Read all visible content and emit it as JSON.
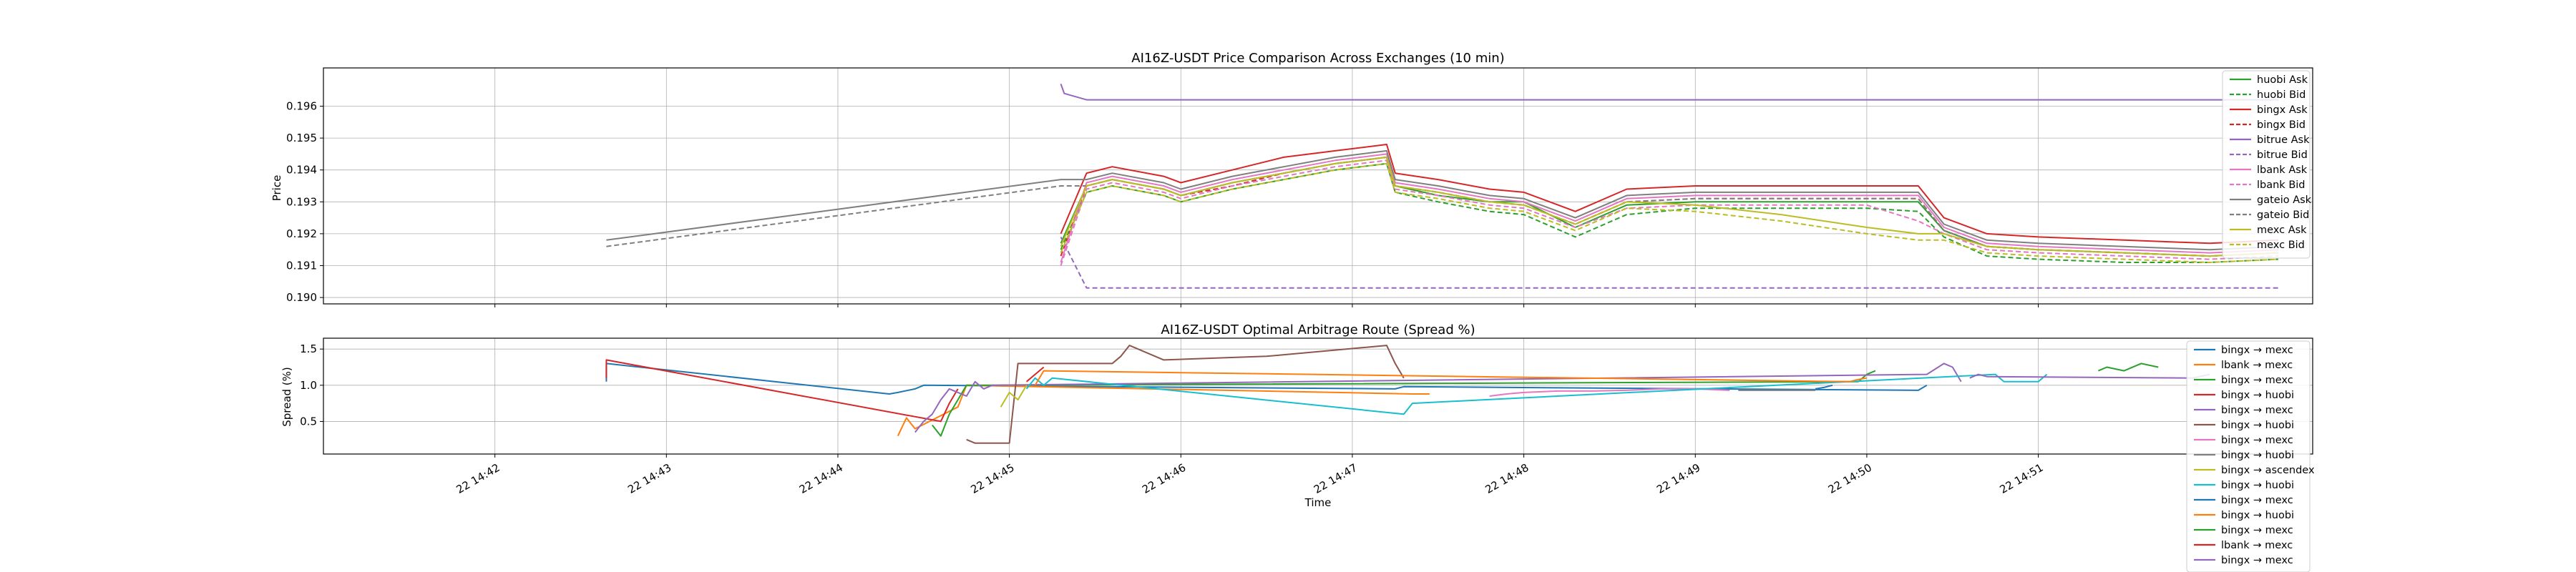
{
  "chart_data": [
    {
      "type": "line",
      "title": "AI16Z-USDT Price Comparison Across Exchanges (10 min)",
      "xlabel": "",
      "ylabel": "Price",
      "ylim": [
        0.1898,
        0.1972
      ],
      "yticks": [
        "0.190",
        "0.191",
        "0.192",
        "0.193",
        "0.194",
        "0.195",
        "0.196"
      ],
      "grid": true,
      "legend_position": "upper right",
      "series": [
        {
          "name": "huobi Ask",
          "color": "#2ca02c",
          "dash": "solid",
          "x": [
            4.3,
            4.45,
            4.6,
            4.9,
            5.0,
            5.3,
            5.6,
            5.9,
            6.2,
            6.25,
            6.5,
            6.8,
            7.0,
            7.3,
            7.6,
            8.0,
            8.5,
            9.0,
            9.3,
            9.45,
            9.7,
            10.0,
            10.5,
            11.0,
            11.4
          ],
          "y": [
            0.1917,
            0.1935,
            0.1937,
            0.1934,
            0.1932,
            0.1936,
            0.1939,
            0.1942,
            0.1944,
            0.1935,
            0.1932,
            0.193,
            0.193,
            0.1922,
            0.1929,
            0.193,
            0.193,
            0.193,
            0.193,
            0.1921,
            0.1916,
            0.1915,
            0.1914,
            0.1913,
            0.1914
          ]
        },
        {
          "name": "huobi Bid",
          "color": "#2ca02c",
          "dash": "dashed",
          "x": [
            4.3,
            4.45,
            4.6,
            4.9,
            5.0,
            5.3,
            5.6,
            5.9,
            6.2,
            6.25,
            6.5,
            6.8,
            7.0,
            7.3,
            7.6,
            8.0,
            8.5,
            9.0,
            9.3,
            9.45,
            9.7,
            10.0,
            10.5,
            11.0,
            11.4
          ],
          "y": [
            0.1915,
            0.1933,
            0.1935,
            0.1932,
            0.193,
            0.1934,
            0.1937,
            0.194,
            0.1942,
            0.1933,
            0.193,
            0.1927,
            0.1926,
            0.1919,
            0.1926,
            0.1928,
            0.1928,
            0.1928,
            0.1927,
            0.1919,
            0.1913,
            0.1912,
            0.1911,
            0.1911,
            0.1912
          ]
        },
        {
          "name": "bingx Ask",
          "color": "#d62728",
          "dash": "solid",
          "x": [
            4.3,
            4.45,
            4.6,
            4.9,
            5.0,
            5.3,
            5.6,
            5.9,
            6.2,
            6.25,
            6.5,
            6.8,
            7.0,
            7.3,
            7.6,
            8.0,
            8.5,
            9.0,
            9.3,
            9.45,
            9.7,
            10.0,
            10.5,
            11.0,
            11.4
          ],
          "y": [
            0.192,
            0.1939,
            0.1941,
            0.1938,
            0.1936,
            0.194,
            0.1944,
            0.1946,
            0.1948,
            0.1939,
            0.1937,
            0.1934,
            0.1933,
            0.1927,
            0.1934,
            0.1935,
            0.1935,
            0.1935,
            0.1935,
            0.1925,
            0.192,
            0.1919,
            0.1918,
            0.1917,
            0.1918
          ]
        },
        {
          "name": "bingx Bid",
          "color": "#d62728",
          "dash": "dashed",
          "x": [
            4.3,
            4.45,
            4.6,
            4.9,
            5.0,
            5.3,
            5.6,
            5.9,
            6.2,
            6.25,
            6.5,
            6.8,
            7.0,
            7.3,
            7.6,
            8.0,
            8.5,
            9.0,
            9.3,
            9.45,
            9.7,
            10.0,
            10.5,
            11.0,
            11.4
          ],
          "y": [
            0.1913,
            0.1935,
            0.1937,
            0.1934,
            0.1932,
            0.1935,
            0.1939,
            0.1942,
            0.1944,
            0.1935,
            0.1933,
            0.193,
            0.1929,
            0.1923,
            0.193,
            0.1931,
            0.1931,
            0.1931,
            0.1931,
            0.1921,
            0.1916,
            0.1915,
            0.1914,
            0.1913,
            0.1914
          ]
        },
        {
          "name": "bitrue Ask",
          "color": "#9467bd",
          "dash": "solid",
          "x": [
            4.3,
            4.32,
            4.45,
            5.0,
            6.0,
            7.0,
            8.0,
            9.0,
            10.0,
            11.0,
            11.4
          ],
          "y": [
            0.1967,
            0.1964,
            0.1962,
            0.1962,
            0.1962,
            0.1962,
            0.1962,
            0.1962,
            0.1962,
            0.1962,
            0.1962
          ]
        },
        {
          "name": "bitrue Bid",
          "color": "#9467bd",
          "dash": "dashed",
          "x": [
            4.3,
            4.45,
            5.0,
            6.0,
            7.0,
            8.0,
            9.0,
            10.0,
            11.0,
            11.4
          ],
          "y": [
            0.1919,
            0.1903,
            0.1903,
            0.1903,
            0.1903,
            0.1903,
            0.1903,
            0.1903,
            0.1903,
            0.1903
          ]
        },
        {
          "name": "lbank Ask",
          "color": "#e377c2",
          "dash": "solid",
          "x": [
            4.3,
            4.45,
            4.6,
            4.9,
            5.0,
            5.3,
            5.6,
            5.9,
            6.2,
            6.25,
            6.5,
            6.8,
            7.0,
            7.3,
            7.6,
            8.0,
            8.5,
            9.0,
            9.3,
            9.45,
            9.7,
            10.0,
            10.5,
            11.0,
            11.4
          ],
          "y": [
            0.1911,
            0.1936,
            0.1938,
            0.1935,
            0.1933,
            0.1937,
            0.194,
            0.1943,
            0.1945,
            0.1936,
            0.1934,
            0.1931,
            0.193,
            0.1924,
            0.1931,
            0.1932,
            0.1932,
            0.1932,
            0.1932,
            0.1922,
            0.1917,
            0.1916,
            0.1915,
            0.1914,
            0.1915
          ]
        },
        {
          "name": "lbank Bid",
          "color": "#e377c2",
          "dash": "dashed",
          "x": [
            4.3,
            4.45,
            4.6,
            4.9,
            5.0,
            5.3,
            5.6,
            5.9,
            6.2,
            6.25,
            6.5,
            6.8,
            7.0,
            7.3,
            7.6,
            8.0,
            8.5,
            9.0,
            9.3,
            9.45,
            9.7,
            10.0,
            10.5,
            11.0,
            11.4
          ],
          "y": [
            0.191,
            0.1934,
            0.1936,
            0.1933,
            0.1931,
            0.1935,
            0.1938,
            0.1941,
            0.1943,
            0.1934,
            0.1932,
            0.1929,
            0.1928,
            0.1922,
            0.1928,
            0.1929,
            0.1929,
            0.1929,
            0.1924,
            0.192,
            0.1915,
            0.1914,
            0.1913,
            0.1912,
            0.1913
          ]
        },
        {
          "name": "gateio Ask",
          "color": "#7f7f7f",
          "dash": "solid",
          "x": [
            1.65,
            4.3,
            4.45,
            4.6,
            4.9,
            5.0,
            5.3,
            5.6,
            5.9,
            6.2,
            6.25,
            6.5,
            6.8,
            7.0,
            7.3,
            7.6,
            8.0,
            8.5,
            9.0,
            9.3,
            9.45,
            9.7,
            10.0,
            10.5,
            11.0,
            11.4
          ],
          "y": [
            0.1918,
            0.1937,
            0.1937,
            0.1939,
            0.1936,
            0.1934,
            0.1938,
            0.1941,
            0.1944,
            0.1946,
            0.1937,
            0.1935,
            0.1932,
            0.1931,
            0.1925,
            0.1932,
            0.1933,
            0.1933,
            0.1933,
            0.1933,
            0.1923,
            0.1918,
            0.1917,
            0.1916,
            0.1915,
            0.1916
          ]
        },
        {
          "name": "gateio Bid",
          "color": "#7f7f7f",
          "dash": "dashed",
          "x": [
            1.65,
            4.3,
            4.45,
            4.6,
            4.9,
            5.0,
            5.3,
            5.6,
            5.9,
            6.2,
            6.25,
            6.5,
            6.8,
            7.0,
            7.3,
            7.6,
            8.0,
            8.5,
            9.0,
            9.3,
            9.45,
            9.7,
            10.0,
            10.5,
            11.0,
            11.4
          ],
          "y": [
            0.1916,
            0.1935,
            0.1935,
            0.1937,
            0.1934,
            0.1932,
            0.1936,
            0.1939,
            0.1942,
            0.1944,
            0.1935,
            0.1933,
            0.193,
            0.1929,
            0.1923,
            0.193,
            0.1931,
            0.1931,
            0.1931,
            0.1931,
            0.1921,
            0.1916,
            0.1915,
            0.1914,
            0.1913,
            0.1914
          ]
        },
        {
          "name": "mexc Ask",
          "color": "#bcbd22",
          "dash": "solid",
          "x": [
            4.3,
            4.45,
            4.6,
            4.9,
            5.0,
            5.3,
            5.6,
            5.9,
            6.2,
            6.25,
            6.5,
            6.8,
            7.0,
            7.3,
            7.6,
            8.0,
            8.5,
            9.0,
            9.3,
            9.45,
            9.7,
            10.0,
            10.5,
            11.0,
            11.4
          ],
          "y": [
            0.1916,
            0.1935,
            0.1937,
            0.1934,
            0.1932,
            0.1936,
            0.1939,
            0.1942,
            0.1944,
            0.1935,
            0.1933,
            0.193,
            0.1929,
            0.1923,
            0.193,
            0.1929,
            0.1926,
            0.1922,
            0.192,
            0.192,
            0.1916,
            0.1915,
            0.1914,
            0.1913,
            0.1914
          ]
        },
        {
          "name": "mexc Bid",
          "color": "#bcbd22",
          "dash": "dashed",
          "x": [
            4.3,
            4.45,
            4.6,
            4.9,
            5.0,
            5.3,
            5.6,
            5.9,
            6.2,
            6.25,
            6.5,
            6.8,
            7.0,
            7.3,
            7.6,
            8.0,
            8.5,
            9.0,
            9.3,
            9.45,
            9.7,
            10.0,
            10.5,
            11.0,
            11.4
          ],
          "y": [
            0.1914,
            0.1933,
            0.1935,
            0.1932,
            0.193,
            0.1934,
            0.1937,
            0.194,
            0.1942,
            0.1933,
            0.1931,
            0.1928,
            0.1927,
            0.1921,
            0.1928,
            0.1927,
            0.1924,
            0.192,
            0.1918,
            0.1918,
            0.1914,
            0.1913,
            0.1912,
            0.1911,
            0.1912
          ]
        }
      ]
    },
    {
      "type": "line",
      "title": "AI16Z-USDT Optimal Arbitrage Route (Spread %)",
      "xlabel": "Time",
      "ylabel": "Spread (%)",
      "xlim": [
        0,
        11.6
      ],
      "ylim": [
        0.05,
        1.65
      ],
      "yticks": [
        "0.5",
        "1.0",
        "1.5"
      ],
      "xticks": [
        "22 14:42",
        "22 14:43",
        "22 14:44",
        "22 14:45",
        "22 14:46",
        "22 14:47",
        "22 14:48",
        "22 14:49",
        "22 14:50",
        "22 14:51"
      ],
      "grid": true,
      "legend_position": "upper right",
      "series": [
        {
          "name": "bingx → mexc",
          "color": "#1f77b4",
          "x": [
            1.65,
            1.65,
            3.3,
            3.35,
            3.45,
            3.5,
            6.25,
            6.3,
            9.3,
            9.35
          ],
          "y": [
            1.05,
            1.3,
            0.88,
            0.9,
            0.95,
            1.0,
            0.95,
            0.98,
            0.93,
            1.0
          ]
        },
        {
          "name": "lbank → mexc",
          "color": "#ff7f0e",
          "x": [
            3.35,
            3.4,
            3.45,
            3.7,
            3.75,
            6.35,
            6.4,
            6.45
          ],
          "y": [
            0.3,
            0.55,
            0.4,
            0.7,
            1.0,
            0.88,
            0.88,
            0.88
          ]
        },
        {
          "name": "bingx → mexc",
          "color": "#2ca02c",
          "x": [
            3.55,
            3.6,
            3.65,
            3.7,
            3.75,
            8.95,
            9.0,
            9.05
          ],
          "y": [
            0.45,
            0.3,
            0.6,
            0.8,
            1.0,
            1.05,
            1.15,
            1.2
          ]
        },
        {
          "name": "bingx → huobi",
          "color": "#d62728",
          "x": [
            1.65,
            1.65,
            3.6,
            3.65,
            3.7
          ],
          "y": [
            1.1,
            1.35,
            0.5,
            0.75,
            0.95
          ]
        },
        {
          "name": "bingx → mexc",
          "color": "#9467bd",
          "x": [
            3.45,
            3.5,
            3.55,
            3.6,
            3.65,
            3.7,
            3.75,
            3.8,
            3.85,
            3.9,
            9.35,
            9.45,
            9.5,
            9.55
          ],
          "y": [
            0.35,
            0.5,
            0.6,
            0.8,
            0.95,
            0.9,
            0.85,
            1.05,
            0.95,
            1.0,
            1.15,
            1.3,
            1.25,
            1.05
          ]
        },
        {
          "name": "bingx → huobi",
          "color": "#8c564b",
          "x": [
            3.75,
            3.8,
            4.0,
            4.05,
            4.6,
            4.65,
            4.7,
            4.9,
            5.5,
            6.2,
            6.25,
            6.3
          ],
          "y": [
            0.25,
            0.2,
            0.2,
            1.3,
            1.3,
            1.4,
            1.55,
            1.35,
            1.4,
            1.55,
            1.3,
            1.1
          ]
        },
        {
          "name": "bingx → mexc",
          "color": "#e377c2",
          "x": [
            6.8,
            6.9,
            7.0,
            7.2,
            7.4,
            7.6,
            7.8,
            8.0,
            8.2
          ],
          "y": [
            0.85,
            0.88,
            0.9,
            0.92,
            0.92,
            0.93,
            0.95,
            0.95,
            0.93
          ]
        },
        {
          "name": "bingx → huobi",
          "color": "#7f7f7f",
          "x": [
            8.25,
            8.5,
            8.7
          ],
          "y": [
            0.93,
            0.93,
            0.93
          ]
        },
        {
          "name": "bingx → ascendex",
          "color": "#bcbd22",
          "x": [
            3.95,
            4.0,
            4.05,
            4.1
          ],
          "y": [
            0.7,
            0.9,
            0.8,
            1.0
          ]
        },
        {
          "name": "bingx → huobi",
          "color": "#17becf",
          "x": [
            4.1,
            4.15,
            4.2,
            4.25,
            6.3,
            6.35,
            9.75,
            9.8,
            9.9,
            10.0,
            10.05
          ],
          "y": [
            0.95,
            1.1,
            1.0,
            1.1,
            0.6,
            0.75,
            1.15,
            1.05,
            1.05,
            1.05,
            1.15
          ]
        },
        {
          "name": "bingx → mexc",
          "color": "#1f77b4",
          "x": [
            8.7,
            8.75,
            8.8
          ],
          "y": [
            0.95,
            0.97,
            1.0
          ]
        },
        {
          "name": "bingx → huobi",
          "color": "#ff7f0e",
          "x": [
            4.15,
            4.2,
            8.9,
            8.95,
            9.0
          ],
          "y": [
            1.0,
            1.2,
            1.05,
            1.08,
            1.1
          ]
        },
        {
          "name": "bingx → mexc",
          "color": "#2ca02c",
          "x": [
            10.35,
            10.4,
            10.5,
            10.6,
            10.7
          ],
          "y": [
            1.2,
            1.25,
            1.2,
            1.3,
            1.25
          ]
        },
        {
          "name": "lbank → mexc",
          "color": "#d62728",
          "x": [
            4.1,
            4.15,
            4.2
          ],
          "y": [
            1.05,
            1.15,
            1.25
          ]
        },
        {
          "name": "bingx → mexc",
          "color": "#9467bd",
          "x": [
            9.6,
            9.65,
            9.7,
            10.9,
            11.0
          ],
          "y": [
            1.1,
            1.15,
            1.12,
            1.1,
            1.15
          ]
        }
      ]
    }
  ]
}
